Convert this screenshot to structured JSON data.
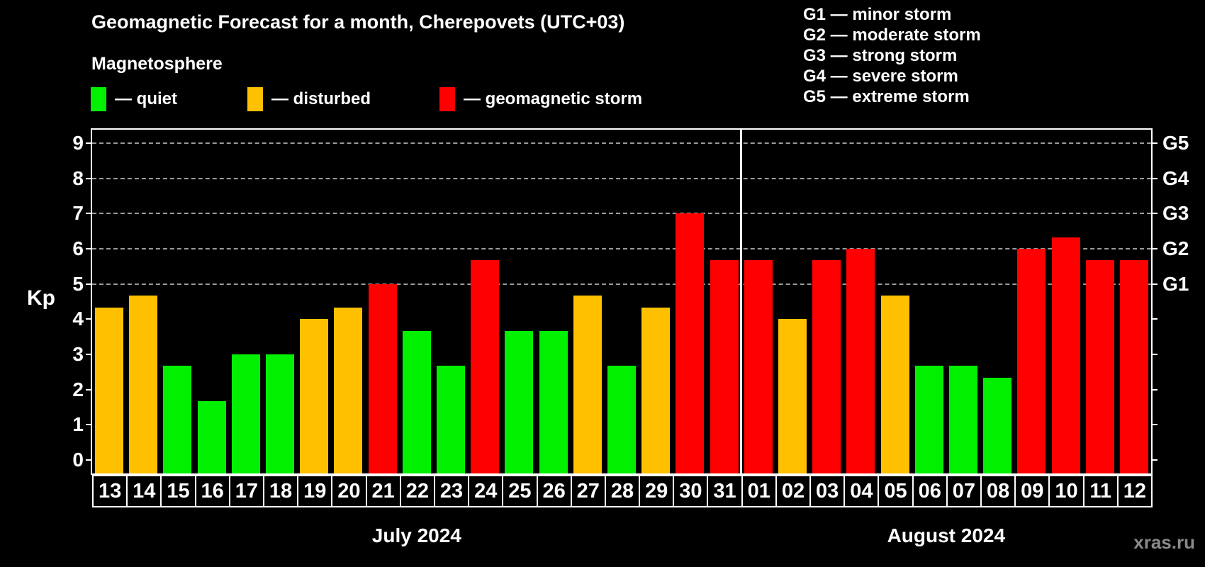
{
  "header": {
    "title": "Geomagnetic Forecast for a month, Cherepovets (UTC+03)",
    "subtitle": "Magnetosphere"
  },
  "legend": {
    "items": [
      {
        "status": "quiet",
        "label": "— quiet",
        "color": "#00f000"
      },
      {
        "status": "disturbed",
        "label": "— disturbed",
        "color": "#ffc000"
      },
      {
        "status": "storm",
        "label": "— geomagnetic storm",
        "color": "#ff0000"
      }
    ]
  },
  "g_scale_legend": {
    "items": [
      "G1 — minor storm",
      "G2 — moderate storm",
      "G3 — strong storm",
      "G4 — severe storm",
      "G5 — extreme storm"
    ]
  },
  "watermark": "xras.ru",
  "chart_data": {
    "type": "bar",
    "title": "Geomagnetic Forecast for a month, Cherepovets (UTC+03)",
    "xlabel": "",
    "ylabel": "Kp",
    "ylim": [
      0,
      9
    ],
    "y_ticks": [
      0,
      1,
      2,
      3,
      4,
      5,
      6,
      7,
      8,
      9
    ],
    "grid": "dashed horizontal gridlines only at Kp 5,6,7,8,9",
    "legend_position": "top-left",
    "right_axis": [
      {
        "kp": 5,
        "label": "G1"
      },
      {
        "kp": 6,
        "label": "G2"
      },
      {
        "kp": 7,
        "label": "G3"
      },
      {
        "kp": 8,
        "label": "G4"
      },
      {
        "kp": 9,
        "label": "G5"
      }
    ],
    "months": [
      {
        "label": "July 2024",
        "days": 19
      },
      {
        "label": "August 2024",
        "days": 12
      }
    ],
    "categories": [
      "13",
      "14",
      "15",
      "16",
      "17",
      "18",
      "19",
      "20",
      "21",
      "22",
      "23",
      "24",
      "25",
      "26",
      "27",
      "28",
      "29",
      "30",
      "31",
      "01",
      "02",
      "03",
      "04",
      "05",
      "06",
      "07",
      "08",
      "09",
      "10",
      "11",
      "12"
    ],
    "values": [
      4.33,
      4.67,
      2.67,
      1.67,
      3,
      3,
      4,
      4.33,
      5,
      3.67,
      2.67,
      5.67,
      3.67,
      3.67,
      4.67,
      2.67,
      4.33,
      7,
      5.67,
      5.67,
      4,
      5.67,
      6,
      4.67,
      2.67,
      2.67,
      2.33,
      6,
      6.33,
      5.67,
      5.67
    ],
    "statuses": [
      "disturbed",
      "disturbed",
      "quiet",
      "quiet",
      "quiet",
      "quiet",
      "disturbed",
      "disturbed",
      "storm",
      "quiet",
      "quiet",
      "storm",
      "quiet",
      "quiet",
      "disturbed",
      "quiet",
      "disturbed",
      "storm",
      "storm",
      "storm",
      "disturbed",
      "storm",
      "storm",
      "disturbed",
      "quiet",
      "quiet",
      "quiet",
      "storm",
      "storm",
      "storm",
      "storm"
    ],
    "colors": {
      "quiet": "#00f000",
      "disturbed": "#ffc000",
      "storm": "#ff0000",
      "grid": "#9a9a9a",
      "axis": "#ffffff",
      "background": "#000000"
    }
  }
}
